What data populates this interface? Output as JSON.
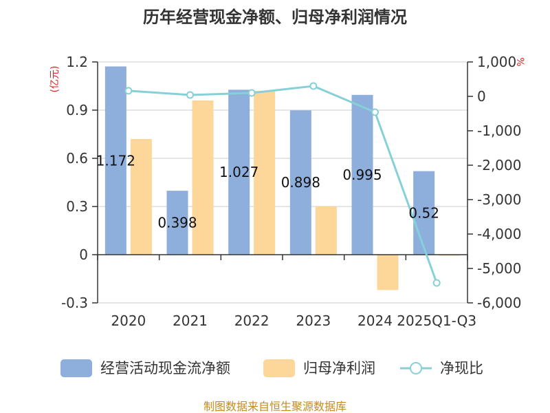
{
  "colors": {
    "cash_flow": "#8eaedb",
    "net_profit": "#fdd69a",
    "ratio": "#86d0d8",
    "axis": "#333333",
    "grid": "#cccccc",
    "unit_text": "#e0201f",
    "source_text": "#c58a1f"
  },
  "chart_data": {
    "type": "bar",
    "title": "历年经营现金净额、归母净利润情况",
    "categories": [
      "2020",
      "2021",
      "2022",
      "2023",
      "2024",
      "2025Q1-Q3"
    ],
    "left_unit": "(亿元)",
    "right_unit": "%",
    "ylim_left": [
      -0.3,
      1.2
    ],
    "yticks_left": [
      "1.2",
      "0.9",
      "0.6",
      "0.3",
      "0",
      "-0.3"
    ],
    "ylim_right": [
      -6000,
      1000
    ],
    "yticks_right": [
      "1,000",
      "0",
      "-1,000",
      "-2,000",
      "-3,000",
      "-4,000",
      "-5,000",
      "-6,000"
    ],
    "grid": true,
    "legend_position": "bottom",
    "series": [
      {
        "name": "经营活动现金流净额",
        "type": "bar",
        "axis": "left",
        "values": [
          1.172,
          0.398,
          1.027,
          0.898,
          0.995,
          0.52
        ],
        "labels": [
          "1.172",
          "0.398",
          "1.027",
          "0.898",
          "0.995",
          "0.52"
        ]
      },
      {
        "name": "归母净利润",
        "type": "bar",
        "axis": "left",
        "values": [
          0.72,
          0.96,
          1.02,
          0.3,
          -0.22,
          -0.005
        ]
      },
      {
        "name": "净现比",
        "type": "line",
        "axis": "right",
        "values": [
          163,
          41,
          100,
          300,
          -460,
          -5420
        ]
      }
    ]
  },
  "source": "制图数据来自恒生聚源数据库"
}
